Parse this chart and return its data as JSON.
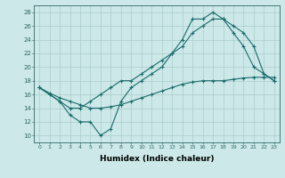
{
  "title": "",
  "xlabel": "Humidex (Indice chaleur)",
  "bg_color": "#cce8e8",
  "grid_color": "#aacccc",
  "line_color": "#1a6b6b",
  "xlim": [
    -0.5,
    23.5
  ],
  "ylim": [
    9,
    29
  ],
  "yticks": [
    10,
    12,
    14,
    16,
    18,
    20,
    22,
    24,
    26,
    28
  ],
  "xticks": [
    0,
    1,
    2,
    3,
    4,
    5,
    6,
    7,
    8,
    9,
    10,
    11,
    12,
    13,
    14,
    15,
    16,
    17,
    18,
    19,
    20,
    21,
    22,
    23
  ],
  "series1_x": [
    0,
    1,
    2,
    3,
    4,
    5,
    6,
    7,
    8,
    9,
    10,
    11,
    12,
    13,
    14,
    15,
    16,
    17,
    18,
    19,
    20,
    21,
    22,
    23
  ],
  "series1_y": [
    17,
    16,
    15,
    13,
    12,
    12,
    10,
    11,
    15,
    17,
    18,
    19,
    20,
    22,
    23,
    25,
    26,
    27,
    27,
    25,
    23,
    20,
    19,
    18
  ],
  "series2_x": [
    0,
    2,
    3,
    4,
    5,
    6,
    7,
    8,
    9,
    10,
    11,
    12,
    13,
    14,
    15,
    16,
    17,
    18,
    19,
    20,
    21,
    22,
    23
  ],
  "series2_y": [
    17,
    15,
    14,
    14,
    15,
    16,
    17,
    18,
    18,
    19,
    20,
    21,
    22,
    24,
    27,
    27,
    28,
    27,
    26,
    25,
    23,
    19,
    18
  ],
  "series3_x": [
    0,
    1,
    2,
    3,
    4,
    5,
    6,
    7,
    8,
    9,
    10,
    11,
    12,
    13,
    14,
    15,
    16,
    17,
    18,
    19,
    20,
    21,
    22,
    23
  ],
  "series3_y": [
    17,
    16.2,
    15.5,
    15,
    14.5,
    14,
    14,
    14.2,
    14.5,
    15,
    15.5,
    16,
    16.5,
    17,
    17.5,
    17.8,
    18,
    18,
    18,
    18.2,
    18.4,
    18.5,
    18.5,
    18.5
  ]
}
